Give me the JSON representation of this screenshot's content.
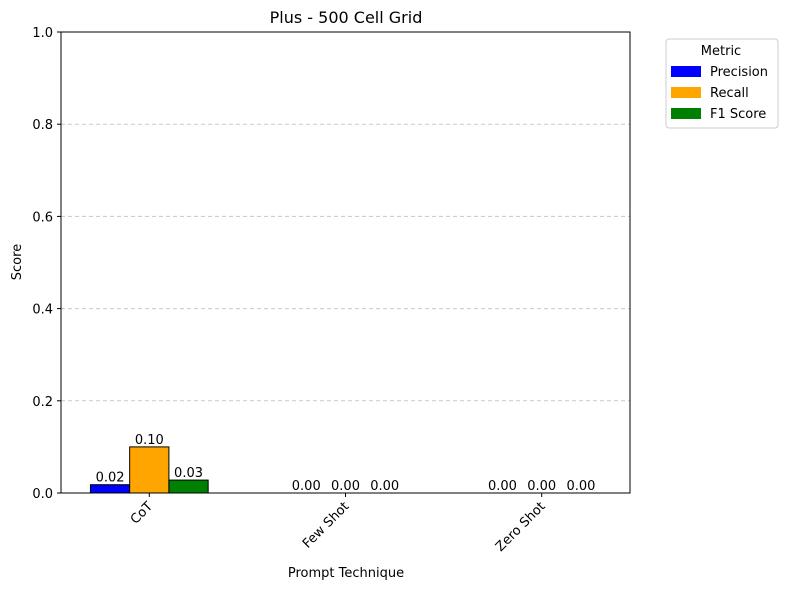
{
  "chart_data": {
    "type": "bar",
    "title": "Plus - 500 Cell Grid",
    "xlabel": "Prompt Technique",
    "ylabel": "Score",
    "ylim": [
      0,
      1.0
    ],
    "yticks": [
      "0.0",
      "0.2",
      "0.4",
      "0.6",
      "0.8",
      "1.0"
    ],
    "categories": [
      "CoT",
      "Few Shot",
      "Zero Shot"
    ],
    "series": [
      {
        "name": "Precision",
        "color": "#0000ff",
        "values": [
          0.018,
          0.0,
          0.0
        ],
        "labels": [
          "0.02",
          "0.00",
          "0.00"
        ]
      },
      {
        "name": "Recall",
        "color": "#ffa500",
        "values": [
          0.1,
          0.0,
          0.0
        ],
        "labels": [
          "0.10",
          "0.00",
          "0.00"
        ]
      },
      {
        "name": "F1 Score",
        "color": "#008000",
        "values": [
          0.028,
          0.0,
          0.0
        ],
        "labels": [
          "0.03",
          "0.00",
          "0.00"
        ]
      }
    ],
    "grid": "y-dashed",
    "legend": {
      "title": "Metric",
      "placement": "outside-top-right"
    }
  }
}
